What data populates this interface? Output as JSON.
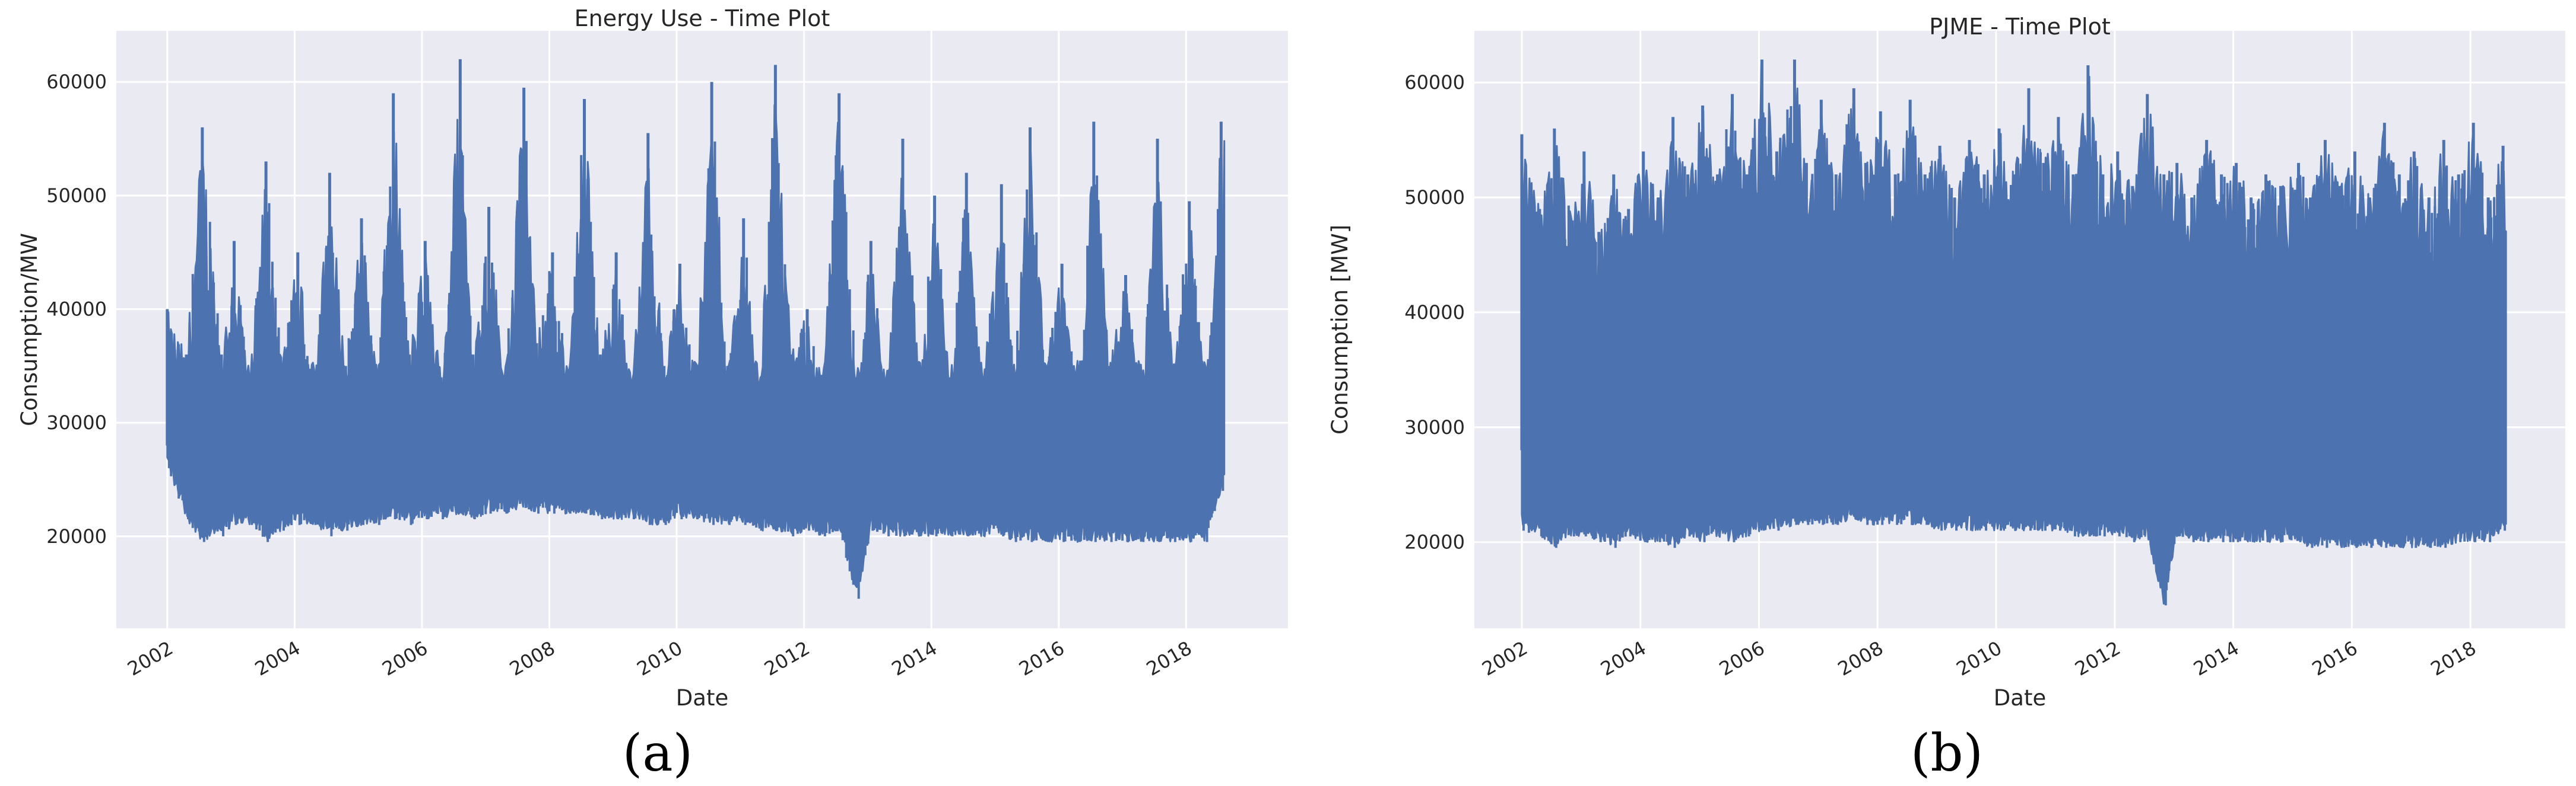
{
  "chart_data": [
    {
      "type": "line",
      "title": "Energy Use - Time Plot",
      "xlabel": "Date",
      "ylabel": "Consumption/MW",
      "panel_label": "(a)",
      "x_ticks": [
        "2002",
        "2004",
        "2006",
        "2008",
        "2010",
        "2012",
        "2014",
        "2016",
        "2018"
      ],
      "y_ticks": [
        20000,
        30000,
        40000,
        50000,
        60000
      ],
      "xlim": [
        2001.2,
        2019.6
      ],
      "ylim": [
        11900,
        64500
      ],
      "x_range": [
        2002.0,
        2018.6
      ],
      "grid": true,
      "color": "#4c72b0",
      "series": [
        {
          "description": "hourly consumption envelope, yearly (winter/summer) pattern",
          "x": [
            2002.0,
            2002.3,
            2002.55,
            2002.85,
            2003.05,
            2003.3,
            2003.55,
            2003.8,
            2004.05,
            2004.3,
            2004.55,
            2004.8,
            2005.05,
            2005.3,
            2005.55,
            2005.8,
            2006.05,
            2006.3,
            2006.6,
            2006.8,
            2007.05,
            2007.3,
            2007.6,
            2007.8,
            2008.05,
            2008.3,
            2008.55,
            2008.8,
            2009.05,
            2009.3,
            2009.55,
            2009.8,
            2010.05,
            2010.3,
            2010.55,
            2010.8,
            2011.05,
            2011.3,
            2011.55,
            2011.8,
            2012.05,
            2012.3,
            2012.55,
            2012.83,
            2013.05,
            2013.3,
            2013.55,
            2013.8,
            2014.05,
            2014.3,
            2014.55,
            2014.8,
            2015.1,
            2015.3,
            2015.55,
            2015.8,
            2016.05,
            2016.3,
            2016.55,
            2016.8,
            2017.05,
            2017.3,
            2017.55,
            2017.8,
            2018.05,
            2018.3,
            2018.55
          ],
          "max": [
            40000,
            36000,
            56000,
            36000,
            46000,
            34000,
            53000,
            35000,
            45000,
            33000,
            52000,
            35000,
            48000,
            34000,
            59000,
            36000,
            46000,
            34000,
            62000,
            36000,
            49000,
            34000,
            59500,
            37000,
            45000,
            34000,
            58500,
            36000,
            45000,
            33000,
            55500,
            35000,
            44000,
            33000,
            60000,
            35000,
            48000,
            33000,
            61500,
            36000,
            40000,
            34000,
            59000,
            34000,
            46000,
            33000,
            55000,
            35000,
            50000,
            34000,
            52000,
            34000,
            51000,
            34000,
            56000,
            35000,
            44000,
            33000,
            56500,
            35000,
            43000,
            32000,
            55000,
            34000,
            49500,
            33000,
            56500
          ],
          "min": [
            26000,
            21500,
            19500,
            20000,
            21000,
            21000,
            19500,
            20500,
            21000,
            21000,
            20000,
            20500,
            21000,
            21000,
            21500,
            21000,
            21500,
            21500,
            22000,
            21500,
            22000,
            22000,
            22500,
            22000,
            22000,
            22000,
            22000,
            21500,
            21500,
            21500,
            21000,
            21000,
            21500,
            21500,
            21000,
            21000,
            21000,
            20500,
            20500,
            20000,
            20500,
            20000,
            20500,
            14500,
            20500,
            20000,
            20000,
            20000,
            20000,
            20000,
            20000,
            20000,
            20000,
            19500,
            19500,
            19500,
            19500,
            19500,
            19500,
            19500,
            19500,
            19500,
            19500,
            19500,
            19500,
            19500,
            24000
          ]
        }
      ]
    },
    {
      "type": "line",
      "title": "PJME - Time Plot",
      "xlabel": "Date",
      "ylabel": "Consumption [MW]",
      "panel_label": "(b)",
      "x_ticks": [
        "2002",
        "2004",
        "2006",
        "2008",
        "2010",
        "2012",
        "2014",
        "2016",
        "2018"
      ],
      "y_ticks": [
        20000,
        30000,
        40000,
        50000,
        60000
      ],
      "xlim": [
        2001.2,
        2019.6
      ],
      "ylim": [
        12500,
        64500
      ],
      "x_range": [
        2002.0,
        2018.6
      ],
      "grid": true,
      "color": "#4c72b0",
      "series": [
        {
          "description": "hourly consumption, PJME",
          "x": [
            2002.0,
            2002.3,
            2002.55,
            2002.85,
            2003.05,
            2003.3,
            2003.55,
            2003.8,
            2004.05,
            2004.3,
            2004.55,
            2004.8,
            2005.05,
            2005.3,
            2005.55,
            2005.8,
            2006.05,
            2006.3,
            2006.6,
            2006.8,
            2007.05,
            2007.3,
            2007.6,
            2007.8,
            2008.05,
            2008.3,
            2008.55,
            2008.8,
            2009.05,
            2009.3,
            2009.55,
            2009.8,
            2010.05,
            2010.3,
            2010.55,
            2010.8,
            2011.05,
            2011.3,
            2011.55,
            2011.8,
            2012.05,
            2012.3,
            2012.55,
            2012.83,
            2013.05,
            2013.3,
            2013.55,
            2013.8,
            2014.05,
            2014.3,
            2014.55,
            2014.8,
            2015.1,
            2015.3,
            2015.55,
            2015.8,
            2016.05,
            2016.3,
            2016.55,
            2016.8,
            2017.05,
            2017.3,
            2017.55,
            2017.8,
            2018.05,
            2018.3,
            2018.55
          ],
          "max": [
            55500,
            49000,
            56000,
            48000,
            54000,
            47000,
            52000,
            49000,
            54000,
            50000,
            57000,
            52000,
            58000,
            52000,
            59000,
            52000,
            62000,
            54000,
            62000,
            53000,
            58500,
            52000,
            59500,
            53000,
            57500,
            52000,
            58500,
            52000,
            54500,
            50000,
            55000,
            52000,
            56000,
            52000,
            59500,
            53000,
            57000,
            52000,
            61500,
            52000,
            54000,
            51000,
            59000,
            52000,
            53000,
            50000,
            55000,
            52000,
            53000,
            50000,
            52000,
            51000,
            53000,
            50000,
            55000,
            51000,
            54000,
            50000,
            56500,
            52000,
            54000,
            50000,
            55000,
            52000,
            56500,
            50000,
            54500
          ],
          "min": [
            21000,
            20500,
            19500,
            20500,
            20500,
            20000,
            19500,
            20500,
            20000,
            20000,
            19500,
            20500,
            20000,
            20500,
            20000,
            20500,
            21000,
            21000,
            21500,
            21500,
            21500,
            21500,
            22000,
            21500,
            21500,
            21500,
            21500,
            21500,
            21000,
            21000,
            21000,
            21000,
            21000,
            21000,
            21000,
            21000,
            21000,
            20500,
            20500,
            20500,
            20500,
            20000,
            20500,
            14500,
            20500,
            20000,
            20000,
            20000,
            20000,
            20000,
            20000,
            20000,
            20000,
            19500,
            19500,
            19500,
            19500,
            19500,
            19500,
            19500,
            19500,
            19500,
            19500,
            20000,
            20000,
            20000,
            21000
          ]
        }
      ]
    }
  ]
}
